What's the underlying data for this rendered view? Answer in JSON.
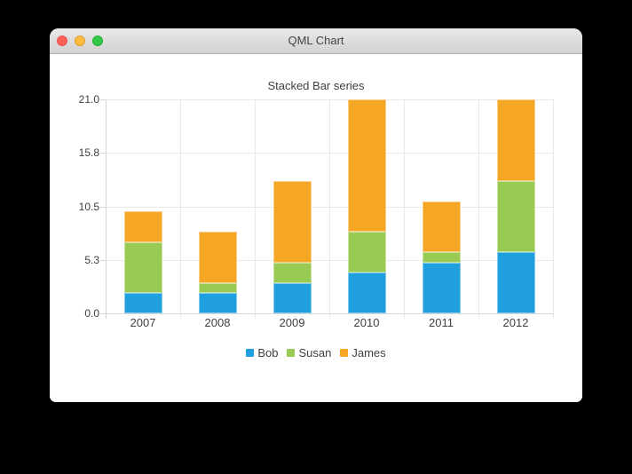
{
  "window": {
    "title": "QML Chart",
    "controls": {
      "close_color": "#ff5f57",
      "minimize_color": "#fdbc40",
      "zoom_color": "#33c748"
    }
  },
  "chart_data": {
    "type": "bar",
    "stacked": true,
    "title": "Stacked Bar series",
    "categories": [
      "2007",
      "2008",
      "2009",
      "2010",
      "2011",
      "2012"
    ],
    "series": [
      {
        "name": "Bob",
        "color": "#209fdf",
        "values": [
          2,
          2,
          3,
          4,
          5,
          6
        ]
      },
      {
        "name": "Susan",
        "color": "#99ca53",
        "values": [
          5,
          1,
          2,
          4,
          1,
          7
        ]
      },
      {
        "name": "James",
        "color": "#f6a625",
        "values": [
          3,
          5,
          8,
          13,
          5,
          8
        ]
      }
    ],
    "xlabel": "",
    "ylabel": "",
    "ylim": [
      0,
      21
    ],
    "y_tick_values": [
      0,
      5.25,
      10.5,
      15.75,
      21
    ],
    "y_tick_labels": [
      "0.0",
      "5.3",
      "10.5",
      "15.8",
      "21.0"
    ],
    "grid": true,
    "legend_position": "bottom",
    "colors": {
      "grid": "#e9e9e9",
      "axis": "#d4d4d4",
      "label": "#404044"
    }
  }
}
